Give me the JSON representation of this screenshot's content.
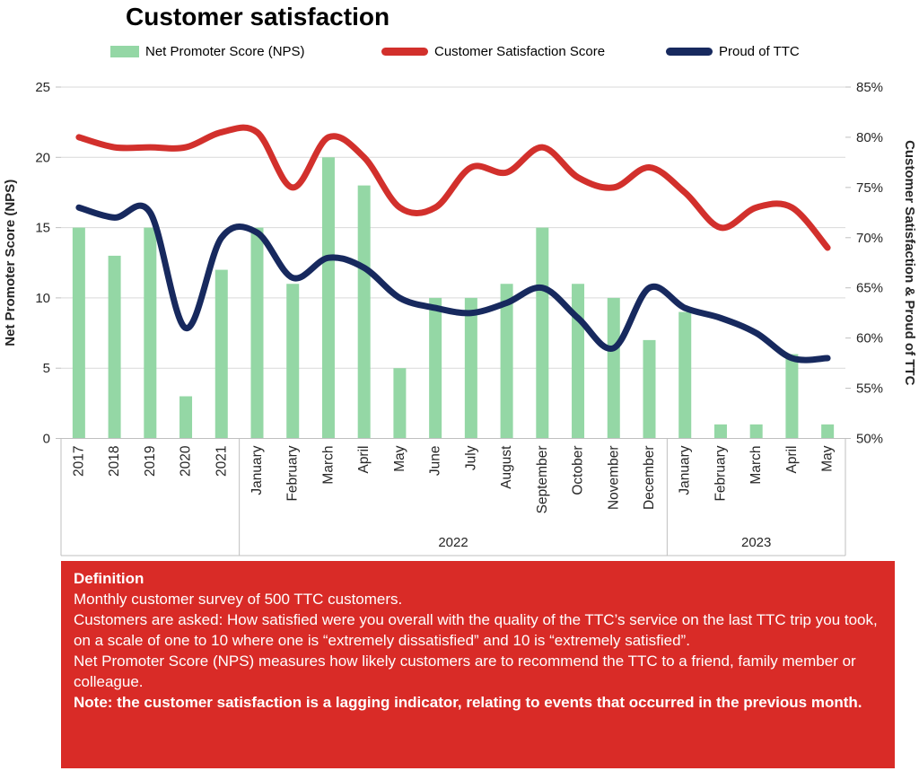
{
  "title": "Customer satisfaction",
  "colors": {
    "bar_green": "#94D7A5",
    "line_red": "#D2302C",
    "line_navy": "#17295E",
    "definition_box_red": "#D92B27",
    "gridline": "#D9D9D9",
    "axis_line": "#BFBFBF",
    "tick_text": "#262626",
    "title_text": "#000000",
    "definition_text": "#FFFFFF"
  },
  "chart_data": {
    "type": "combo-bar-line",
    "title": "Customer satisfaction",
    "grid": true,
    "legend_position": "top",
    "categories": [
      "2017",
      "2018",
      "2019",
      "2020",
      "2021",
      "January",
      "February",
      "March",
      "April",
      "May",
      "June",
      "July",
      "August",
      "September",
      "October",
      "November",
      "December",
      "January",
      "February",
      "March",
      "April",
      "May"
    ],
    "category_groups": [
      {
        "label": "",
        "start": 0,
        "end": 4
      },
      {
        "label": "2022",
        "start": 5,
        "end": 16
      },
      {
        "label": "2023",
        "start": 17,
        "end": 21
      }
    ],
    "series": [
      {
        "name": "Net Promoter Score (NPS)",
        "type": "bar",
        "axis": "left",
        "color": "#94D7A5",
        "values": [
          15,
          13,
          15,
          3,
          12,
          15,
          11,
          20,
          18,
          5,
          10,
          10,
          11,
          15,
          11,
          10,
          7,
          9,
          1,
          1,
          6,
          1
        ]
      },
      {
        "name": "Customer Satisfaction Score",
        "type": "line",
        "axis": "right",
        "color": "#D2302C",
        "values": [
          80,
          79,
          79,
          79,
          80.5,
          80.5,
          75,
          80,
          78,
          73,
          73,
          77,
          76.5,
          79,
          76,
          75,
          77,
          74.5,
          71,
          73,
          73,
          69
        ]
      },
      {
        "name": "Proud of TTC",
        "type": "line",
        "axis": "right",
        "color": "#17295E",
        "values": [
          73,
          72,
          72.5,
          61,
          70,
          70.5,
          66,
          68,
          67,
          64,
          63,
          62.5,
          63.5,
          65,
          62,
          59,
          65,
          63,
          62,
          60.5,
          58,
          58
        ]
      }
    ],
    "left_axis": {
      "title": "Net Promoter Score (NPS)",
      "min": 0,
      "max": 25,
      "step": 5,
      "tick_labels": [
        "0",
        "5",
        "10",
        "15",
        "20",
        "25"
      ]
    },
    "right_axis": {
      "title": "Customer Satisfaction & Proud of TTC",
      "min": 50,
      "max": 85,
      "step": 5,
      "tick_labels": [
        "50%",
        "55%",
        "60%",
        "65%",
        "70%",
        "75%",
        "80%",
        "85%"
      ]
    }
  },
  "definition": {
    "heading": "Definition",
    "lines": [
      "Monthly customer survey of 500 TTC customers.",
      "Customers are asked: How satisfied were you overall with the quality of the TTC’s service on the last TTC trip you took, on a scale of one to 10 where one is “extremely dissatisfied” and 10 is “extremely satisfied”.",
      "Net Promoter Score (NPS) measures how likely customers are to recommend the TTC to a friend, family member or colleague."
    ],
    "note": "Note: the customer satisfaction is a lagging indicator, relating to events that occurred in the previous month."
  }
}
